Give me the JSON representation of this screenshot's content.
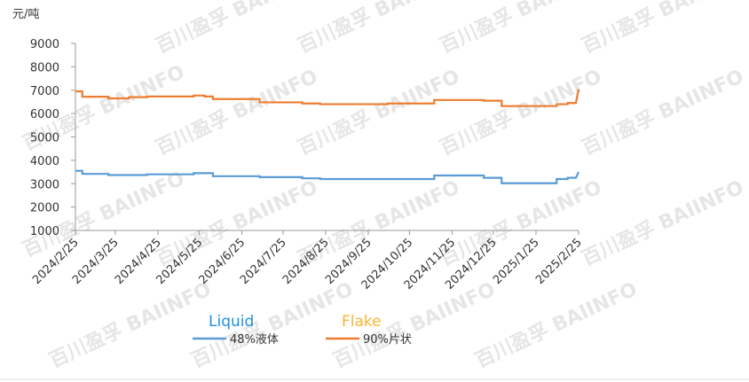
{
  "chart_data": {
    "type": "line",
    "y_label": "元/吨",
    "watermark": "百川盈孚 BAIINFO",
    "annotations": [
      {
        "text": "Liquid",
        "color": "#1e90e0"
      },
      {
        "text": "Flake",
        "color": "#f7b531"
      }
    ],
    "xlim": [
      "2024/2/25",
      "2025/2/25"
    ],
    "xticks": [
      "2024/2/25",
      "2024/3/25",
      "2024/4/25",
      "2024/5/25",
      "2024/6/25",
      "2024/7/25",
      "2024/8/25",
      "2024/9/25",
      "2024/10/25",
      "2024/11/25",
      "2024/12/25",
      "2025/1/25",
      "2025/2/25"
    ],
    "ylim": [
      1000,
      9000
    ],
    "yticks": [
      1000,
      2000,
      3000,
      4000,
      5000,
      6000,
      7000,
      8000,
      9000
    ],
    "series": [
      {
        "name": "48%液体",
        "color": "#5b9bd5",
        "x": [
          "2024/2/25",
          "2024/3/1",
          "2024/3/1",
          "2024/3/20",
          "2024/3/20",
          "2024/4/17",
          "2024/4/17",
          "2024/5/21",
          "2024/5/21",
          "2024/6/4",
          "2024/6/4",
          "2024/7/8",
          "2024/7/8",
          "2024/8/8",
          "2024/8/8",
          "2024/8/21",
          "2024/8/21",
          "2024/11/12",
          "2024/11/12",
          "2024/12/18",
          "2024/12/18",
          "2024/12/31",
          "2024/12/31",
          "2025/2/9",
          "2025/2/9",
          "2025/2/17",
          "2025/2/17",
          "2025/2/23",
          "2025/2/25"
        ],
        "values": [
          3550,
          3550,
          3420,
          3420,
          3370,
          3370,
          3400,
          3400,
          3450,
          3450,
          3320,
          3320,
          3280,
          3280,
          3230,
          3230,
          3200,
          3200,
          3350,
          3350,
          3250,
          3250,
          3020,
          3020,
          3200,
          3200,
          3250,
          3250,
          3500
        ]
      },
      {
        "name": "90%片状",
        "color": "#ed7d31",
        "x": [
          "2024/2/25",
          "2024/3/1",
          "2024/3/1",
          "2024/3/20",
          "2024/3/20",
          "2024/4/4",
          "2024/4/4",
          "2024/4/17",
          "2024/4/17",
          "2024/5/21",
          "2024/5/21",
          "2024/5/29",
          "2024/5/29",
          "2024/6/4",
          "2024/6/4",
          "2024/7/8",
          "2024/7/8",
          "2024/8/8",
          "2024/8/8",
          "2024/8/21",
          "2024/8/21",
          "2024/10/9",
          "2024/10/9",
          "2024/11/12",
          "2024/11/12",
          "2024/12/18",
          "2024/12/18",
          "2024/12/31",
          "2024/12/31",
          "2025/2/9",
          "2025/2/9",
          "2025/2/17",
          "2025/2/17",
          "2025/2/23",
          "2025/2/25"
        ],
        "values": [
          6950,
          6950,
          6720,
          6720,
          6650,
          6650,
          6700,
          6700,
          6730,
          6730,
          6770,
          6770,
          6730,
          6730,
          6620,
          6620,
          6480,
          6480,
          6430,
          6430,
          6400,
          6400,
          6430,
          6430,
          6580,
          6580,
          6550,
          6550,
          6320,
          6320,
          6400,
          6400,
          6450,
          6450,
          7050
        ]
      }
    ]
  }
}
